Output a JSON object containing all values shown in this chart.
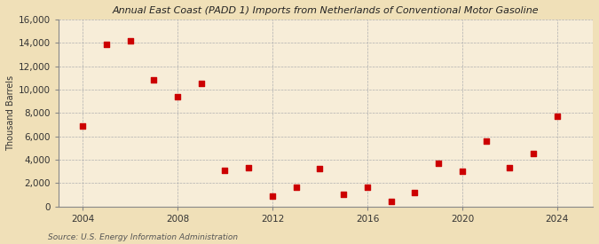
{
  "title": "Annual East Coast (PADD 1) Imports from Netherlands of Conventional Motor Gasoline",
  "ylabel": "Thousand Barrels",
  "source": "Source: U.S. Energy Information Administration",
  "background_color": "#f0e0b8",
  "plot_background_color": "#f7edd8",
  "marker_color": "#cc0000",
  "marker_size": 18,
  "xlim": [
    2003.0,
    2025.5
  ],
  "ylim": [
    0,
    16000
  ],
  "yticks": [
    0,
    2000,
    4000,
    6000,
    8000,
    10000,
    12000,
    14000,
    16000
  ],
  "xticks": [
    2004,
    2008,
    2012,
    2016,
    2020,
    2024
  ],
  "data": {
    "years": [
      2004,
      2005,
      2006,
      2007,
      2008,
      2009,
      2010,
      2011,
      2012,
      2013,
      2014,
      2015,
      2016,
      2017,
      2018,
      2019,
      2020,
      2021,
      2022,
      2023,
      2024
    ],
    "values": [
      6900,
      13900,
      14200,
      10800,
      9400,
      10500,
      3050,
      3300,
      850,
      1600,
      3250,
      1000,
      1600,
      400,
      1200,
      3700,
      3000,
      5600,
      3300,
      4500,
      7700
    ]
  }
}
